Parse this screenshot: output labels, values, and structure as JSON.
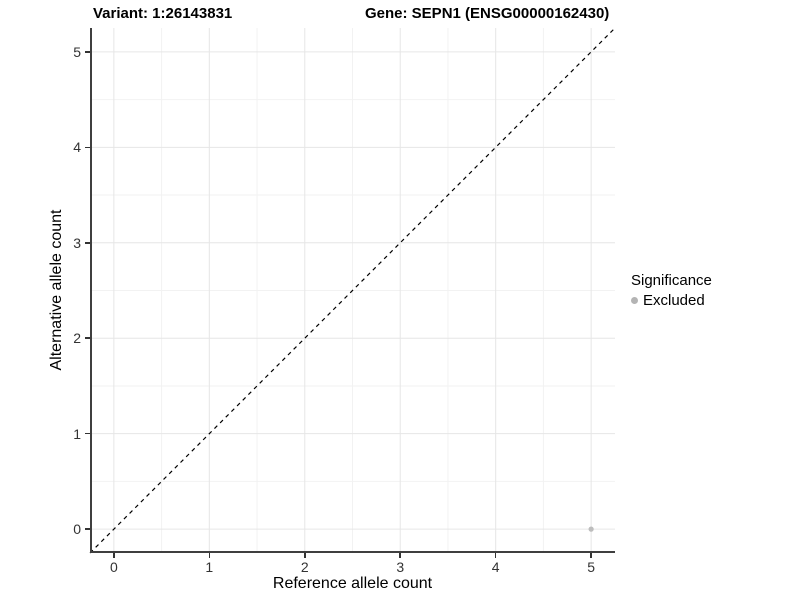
{
  "header": {
    "variant_title": "Variant: 1:26143831",
    "gene_title": "Gene: SEPN1 (ENSG00000162430)"
  },
  "chart_data": {
    "type": "scatter",
    "xlabel": "Reference allele count",
    "ylabel": "Alternative allele count",
    "xlim": [
      -0.25,
      5.25
    ],
    "ylim": [
      -0.25,
      5.25
    ],
    "x_ticks": [
      0,
      1,
      2,
      3,
      4,
      5
    ],
    "y_ticks": [
      0,
      1,
      2,
      3,
      4,
      5
    ],
    "minor_gridlines": [
      0.5,
      1.5,
      2.5,
      3.5,
      4.5
    ],
    "grid": true,
    "reference_line": {
      "description": "identity line y = x",
      "style": "dashed",
      "color": "#000000",
      "from": [
        -0.25,
        -0.25
      ],
      "to": [
        5.25,
        5.25
      ]
    },
    "series": [
      {
        "name": "Excluded",
        "color": "#bdbdbd",
        "points": [
          [
            5,
            0
          ]
        ]
      }
    ],
    "legend": {
      "title": "Significance",
      "position": "right",
      "items": [
        {
          "label": "Excluded",
          "color": "#b4b4b4"
        }
      ]
    }
  },
  "colors": {
    "major_grid": "#e6e6e6",
    "minor_grid": "#f2f2f2",
    "axis_line": "#3f3f3f",
    "tick_mark": "#333333",
    "tick_label": "#333333"
  }
}
